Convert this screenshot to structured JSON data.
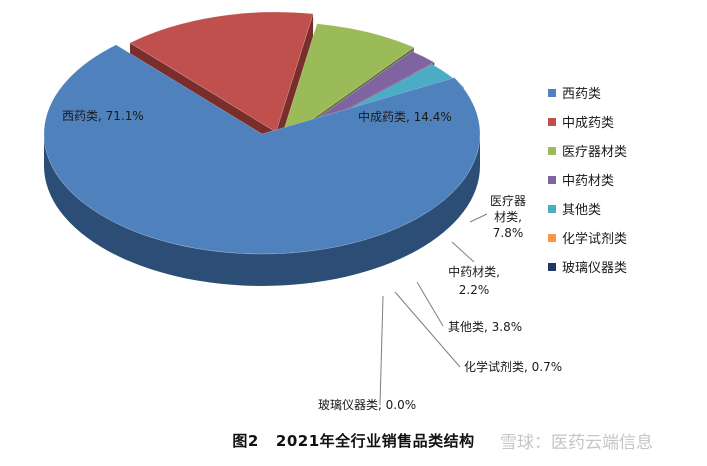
{
  "caption": {
    "fig": "图2",
    "title": "2021年全行业销售品类结构"
  },
  "watermark": "雪球：医药云端信息",
  "chart_data": {
    "type": "pie",
    "style": "3d-exploded",
    "legend_position": "right",
    "slices": [
      {
        "name": "西药类",
        "value": 71.1,
        "label": "西药类, 71.1%",
        "color": "#4f81bd",
        "side": "#2c4d75",
        "legend": "西药类"
      },
      {
        "name": "中成药类",
        "value": 14.4,
        "label": "中成药类, 14.4%",
        "color": "#c0504d",
        "side": "#7a2e2c",
        "legend": "中成药类"
      },
      {
        "name": "医疗器材类",
        "value": 7.8,
        "label_lines": [
          "医疗器",
          "材类,",
          "7.8%"
        ],
        "color": "#9bbb59",
        "side": "#5f7430",
        "legend": "医疗器材类"
      },
      {
        "name": "中药材类",
        "value": 2.2,
        "label_lines": [
          "中药材类,",
          "2.2%"
        ],
        "color": "#8064a2",
        "side": "#4b3a61",
        "legend": "中药材类"
      },
      {
        "name": "其他类",
        "value": 3.8,
        "label": "其他类, 3.8%",
        "color": "#4bacc6",
        "side": "#277385",
        "legend": "其他类"
      },
      {
        "name": "化学试剂类",
        "value": 0.7,
        "label": "化学试剂类, 0.7%",
        "color": "#f79646",
        "side": "#b0601e",
        "legend": "化学试剂类"
      },
      {
        "name": "玻璃仪器类",
        "value": 0.0,
        "label": "玻璃仪器类, 0.0%",
        "color": "#1f3864",
        "side": "#0f1c33",
        "legend": "玻璃仪器类"
      }
    ]
  }
}
